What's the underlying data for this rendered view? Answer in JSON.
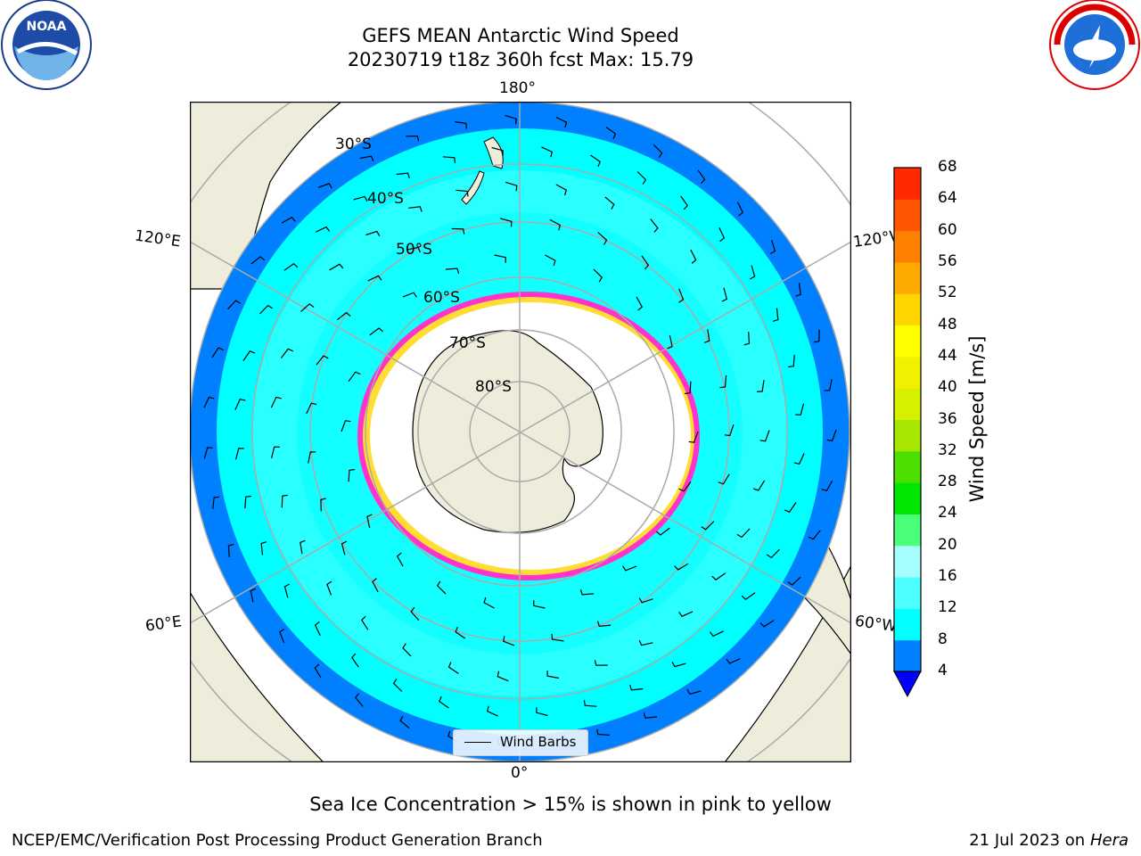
{
  "title": {
    "line1": "GEFS MEAN Antarctic Wind Speed",
    "line2": "20230719 t18z 360h fcst   Max: 15.79"
  },
  "map": {
    "projection": "south polar stereographic",
    "longitude_labels": [
      "180°",
      "120°E",
      "120°W",
      "60°E",
      "60°W",
      "0°"
    ],
    "latitude_labels": [
      "30°S",
      "40°S",
      "50°S",
      "60°S",
      "70°S",
      "80°S"
    ],
    "legend": {
      "label": "Wind Barbs"
    },
    "colors": {
      "land": "#eeecdb",
      "ocean_low": "#0080ff",
      "ocean_mid": "#00ffff",
      "ocean_high": "#4dffff",
      "sea_ice": "#ff33cc",
      "ice_edge": "#ffdd33"
    }
  },
  "colorbar": {
    "label": "Wind Speed [m/s]",
    "ticks": [
      "4",
      "8",
      "12",
      "16",
      "20",
      "24",
      "28",
      "32",
      "36",
      "40",
      "44",
      "48",
      "52",
      "56",
      "60",
      "64",
      "68"
    ],
    "colors": [
      "#0080ff",
      "#00ffff",
      "#4dffff",
      "#a6ffff",
      "#4cff7a",
      "#00e600",
      "#4ddf00",
      "#a6e600",
      "#d7f000",
      "#f0f000",
      "#ffff00",
      "#ffd500",
      "#ffaa00",
      "#ff8000",
      "#ff5500",
      "#ff2a00"
    ],
    "extend_color": "#0000ff"
  },
  "note": "Sea Ice Concentration > 15% is shown in pink to yellow",
  "footer": {
    "left": "NCEP/EMC/Verification Post Processing Product Generation Branch",
    "date": "21 Jul 2023 on ",
    "machine": "Hera"
  },
  "logos": {
    "left": "NOAA",
    "right": "NATIONAL WEATHER SERVICE"
  }
}
